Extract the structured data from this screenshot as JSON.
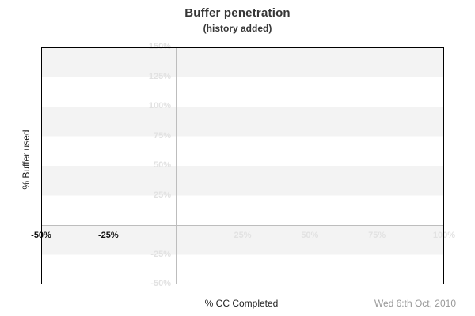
{
  "chart_data": {
    "type": "line",
    "title": "Buffer penetration",
    "subtitle": "(history added)",
    "xlabel": "% CC Completed",
    "ylabel": "% Buffer used",
    "date": "Wed 6:th Oct, 2010",
    "xlim": [
      -50,
      100
    ],
    "ylim": [
      -50,
      150
    ],
    "x_tick_step": 25,
    "y_tick_step": 25,
    "x_ticks": [
      {
        "value": -50,
        "label": "-50%",
        "style": "dark"
      },
      {
        "value": -25,
        "label": "-25%",
        "style": "dark"
      },
      {
        "value": 25,
        "label": "25%",
        "style": "light"
      },
      {
        "value": 50,
        "label": "50%",
        "style": "light"
      },
      {
        "value": 75,
        "label": "75%",
        "style": "light"
      },
      {
        "value": 100,
        "label": "100%",
        "style": "light"
      }
    ],
    "y_ticks": [
      {
        "value": 150,
        "label": "150%"
      },
      {
        "value": 125,
        "label": "125%"
      },
      {
        "value": 100,
        "label": "100%"
      },
      {
        "value": 75,
        "label": "75%"
      },
      {
        "value": 50,
        "label": "50%"
      },
      {
        "value": 25,
        "label": "25%"
      },
      {
        "value": -25,
        "label": "-25%"
      },
      {
        "value": -50,
        "label": "-50%"
      }
    ],
    "series": [],
    "grid": "alternating-horizontal-bands",
    "zero_axis_lines": true,
    "legend": "none",
    "colors": {
      "band": "#f3f3f3",
      "band_alt": "#ffffff",
      "zero_line": "#bdbdbd",
      "tick_light": "#e2e2e2",
      "tick_dark": "#111111",
      "title": "#363636",
      "axis_label": "#222222",
      "date": "#999999",
      "frame": "#000000"
    }
  }
}
